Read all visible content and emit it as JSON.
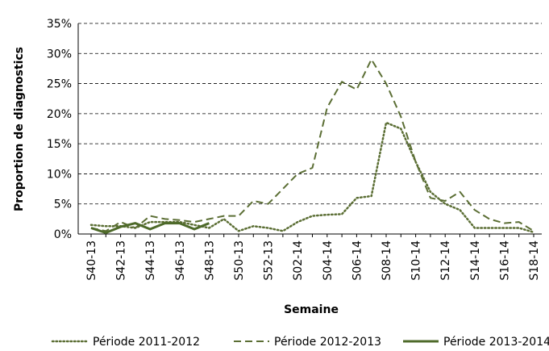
{
  "chart_data": {
    "type": "line",
    "x_label": "Semaine",
    "y_label": "Proportion de diagnostics",
    "categories": [
      "S40-13",
      null,
      "S42-13",
      null,
      "S44-13",
      null,
      "S46-13",
      null,
      "S48-13",
      null,
      "S50-13",
      null,
      "S52-13",
      null,
      "S02-14",
      null,
      "S04-14",
      null,
      "S06-14",
      null,
      "S08-14",
      null,
      "S10-14",
      null,
      "S12-14",
      null,
      "S14-14",
      null,
      "S16-14",
      null,
      "S18-14"
    ],
    "ylim": [
      0,
      35
    ],
    "yticks": [
      {
        "value": 0,
        "label": "0%"
      },
      {
        "value": 5,
        "label": "5%"
      },
      {
        "value": 10,
        "label": "10%"
      },
      {
        "value": 15,
        "label": "15%"
      },
      {
        "value": 20,
        "label": "20%"
      },
      {
        "value": 25,
        "label": "25%"
      },
      {
        "value": 30,
        "label": "30%"
      },
      {
        "value": 35,
        "label": "35%"
      }
    ],
    "grid": true,
    "series": [
      {
        "name": "Période 2011-2012",
        "color": "#5b6e34",
        "dash": "dotted",
        "values": [
          1.5,
          1.3,
          1.3,
          1.0,
          2.0,
          2.0,
          2.0,
          1.5,
          1.0,
          2.5,
          0.5,
          1.3,
          1.0,
          0.5,
          2.0,
          3.0,
          3.2,
          3.3,
          6.0,
          6.3,
          18.5,
          17.5,
          12.0,
          7.0,
          5.0,
          4.0,
          1.0,
          1.0,
          1.0,
          1.0,
          0.3
        ]
      },
      {
        "name": "Période 2012-2013",
        "color": "#5b6e34",
        "dash": "dashed",
        "values": [
          1.0,
          0.5,
          2.0,
          1.0,
          3.0,
          2.5,
          2.3,
          2.0,
          2.5,
          3.0,
          3.0,
          5.5,
          5.0,
          7.5,
          10.0,
          11.0,
          21.0,
          25.3,
          24.0,
          29.0,
          25.0,
          19.5,
          12.0,
          6.0,
          5.5,
          7.0,
          4.0,
          2.5,
          1.8,
          2.0,
          0.5
        ]
      },
      {
        "name": "Période 2013-2014",
        "color": "#4e6a2a",
        "dash": "solid",
        "values": [
          1.0,
          0.2,
          1.2,
          1.8,
          0.8,
          1.8,
          1.8,
          0.8,
          1.8,
          null,
          null,
          null,
          null,
          null,
          null,
          null,
          null,
          null,
          null,
          null,
          null,
          null,
          null,
          null,
          null,
          null,
          null,
          null,
          null,
          null,
          null
        ]
      }
    ]
  }
}
